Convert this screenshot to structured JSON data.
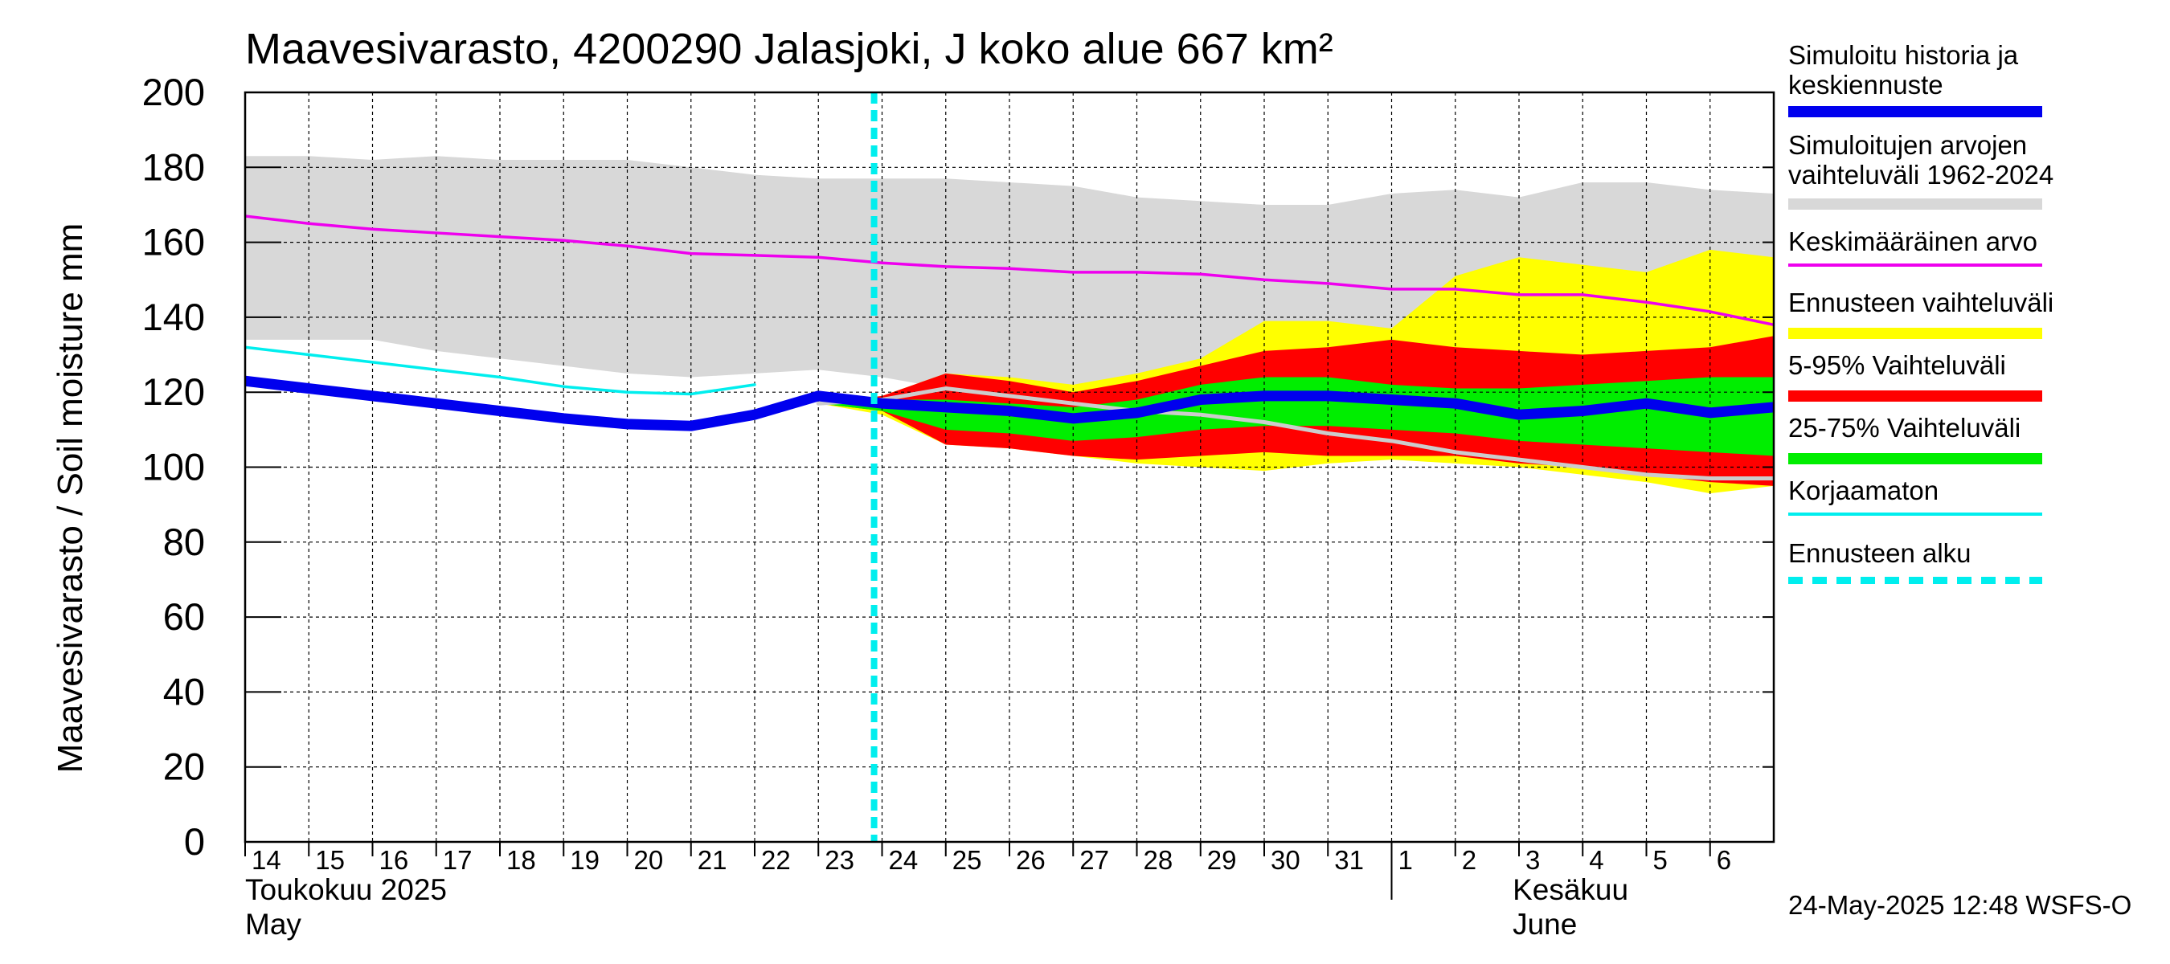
{
  "chart_data": {
    "type": "area",
    "title": "Maavesivarasto, 4200290 Jalasjoki, J koko alue 667 km²",
    "ylabel": "Maavesivarasto / Soil moisture   mm",
    "ylim": [
      0,
      200
    ],
    "yticks": [
      0,
      20,
      40,
      60,
      80,
      100,
      120,
      140,
      160,
      180,
      200
    ],
    "xlim": [
      "2025-05-14",
      "2025-06-07"
    ],
    "xtick_labels": [
      "14",
      "15",
      "16",
      "17",
      "18",
      "19",
      "20",
      "21",
      "22",
      "23",
      "24",
      "25",
      "26",
      "27",
      "28",
      "29",
      "30",
      "31",
      "1",
      "2",
      "3",
      "4",
      "5",
      "6"
    ],
    "month_labels": [
      {
        "fi": "Toukokuu  2025",
        "en": "May"
      },
      {
        "fi": "Kesäkuu",
        "en": "June"
      }
    ],
    "grid": true,
    "legend_position": "right",
    "forecast_start": "2025-05-23T21:00",
    "series": [
      {
        "name": "Simuloitu historia ja keskiennuste",
        "color": "#0000ee",
        "x": [
          "2025-05-14",
          "2025-05-15",
          "2025-05-16",
          "2025-05-17",
          "2025-05-18",
          "2025-05-19",
          "2025-05-20",
          "2025-05-21",
          "2025-05-22",
          "2025-05-23",
          "2025-05-24",
          "2025-05-25",
          "2025-05-26",
          "2025-05-27",
          "2025-05-28",
          "2025-05-29",
          "2025-05-30",
          "2025-05-31",
          "2025-06-01",
          "2025-06-02",
          "2025-06-03",
          "2025-06-04",
          "2025-06-05",
          "2025-06-06",
          "2025-06-07"
        ],
        "y": [
          123,
          121,
          119,
          117,
          115,
          113,
          111.5,
          111,
          114,
          119,
          117,
          116,
          115,
          113,
          114.5,
          118,
          119,
          119,
          118,
          117,
          114,
          115,
          117,
          114.5,
          116
        ]
      },
      {
        "name": "Simuloitujen arvojen vaihteluväli 1962-2024",
        "color": "#d8d8d8",
        "x": [
          "2025-05-14",
          "2025-05-15",
          "2025-05-16",
          "2025-05-17",
          "2025-05-18",
          "2025-05-19",
          "2025-05-20",
          "2025-05-21",
          "2025-05-22",
          "2025-05-23",
          "2025-05-24",
          "2025-05-25",
          "2025-05-26",
          "2025-05-27",
          "2025-05-28",
          "2025-05-29",
          "2025-05-30",
          "2025-05-31",
          "2025-06-01",
          "2025-06-02",
          "2025-06-03",
          "2025-06-04",
          "2025-06-05",
          "2025-06-06",
          "2025-06-07"
        ],
        "upper": [
          183,
          183,
          182,
          183,
          182,
          182,
          182,
          180,
          178,
          177,
          177,
          177,
          176,
          175,
          172,
          171,
          170,
          170,
          173,
          174,
          172,
          176,
          176,
          174,
          173
        ],
        "lower": [
          134,
          134,
          134,
          131,
          129,
          127,
          125,
          124,
          125,
          126,
          124,
          121,
          119,
          118,
          116,
          116,
          117,
          118,
          118,
          117,
          116,
          118,
          117,
          118,
          116
        ]
      },
      {
        "name": "Keskimääräinen arvo",
        "color": "#ee00ee",
        "x": [
          "2025-05-14",
          "2025-05-15",
          "2025-05-16",
          "2025-05-17",
          "2025-05-18",
          "2025-05-19",
          "2025-05-20",
          "2025-05-21",
          "2025-05-22",
          "2025-05-23",
          "2025-05-24",
          "2025-05-25",
          "2025-05-26",
          "2025-05-27",
          "2025-05-28",
          "2025-05-29",
          "2025-05-30",
          "2025-05-31",
          "2025-06-01",
          "2025-06-02",
          "2025-06-03",
          "2025-06-04",
          "2025-06-05",
          "2025-06-06",
          "2025-06-07"
        ],
        "y": [
          167,
          165,
          163.5,
          162.5,
          161.5,
          160.5,
          159,
          157,
          156.5,
          156,
          154.5,
          153.5,
          153,
          152,
          152,
          151.5,
          150,
          149,
          147.5,
          147.5,
          146,
          146,
          144,
          141.5,
          138
        ]
      },
      {
        "name": "Ennusteen vaihteluväli",
        "color": "#ffff00",
        "x": [
          "2025-05-23",
          "2025-05-24",
          "2025-05-25",
          "2025-05-26",
          "2025-05-27",
          "2025-05-28",
          "2025-05-29",
          "2025-05-30",
          "2025-05-31",
          "2025-06-01",
          "2025-06-02",
          "2025-06-03",
          "2025-06-04",
          "2025-06-05",
          "2025-06-06",
          "2025-06-07"
        ],
        "upper": [
          117,
          119,
          125,
          124,
          122,
          125,
          129,
          139,
          139,
          137,
          151,
          156,
          154,
          152,
          158,
          156
        ],
        "lower": [
          117,
          114,
          106,
          105,
          103,
          101,
          100,
          99,
          101,
          102,
          101,
          100,
          98,
          96,
          93,
          95
        ]
      },
      {
        "name": "5-95% Vaihteluväli",
        "color": "#ff0000",
        "x": [
          "2025-05-23",
          "2025-05-24",
          "2025-05-25",
          "2025-05-26",
          "2025-05-27",
          "2025-05-28",
          "2025-05-29",
          "2025-05-30",
          "2025-05-31",
          "2025-06-01",
          "2025-06-02",
          "2025-06-03",
          "2025-06-04",
          "2025-06-05",
          "2025-06-06",
          "2025-06-07"
        ],
        "upper": [
          117,
          119,
          125,
          123,
          120,
          123,
          127,
          131,
          132,
          134,
          132,
          131,
          130,
          131,
          132,
          135
        ],
        "lower": [
          117,
          115,
          106,
          105,
          103,
          102,
          103,
          104,
          103,
          103,
          103,
          101,
          100,
          98,
          96,
          95
        ]
      },
      {
        "name": "25-75% Vaihteluväli",
        "color": "#00ee00",
        "x": [
          "2025-05-23",
          "2025-05-24",
          "2025-05-25",
          "2025-05-26",
          "2025-05-27",
          "2025-05-28",
          "2025-05-29",
          "2025-05-30",
          "2025-05-31",
          "2025-06-01",
          "2025-06-02",
          "2025-06-03",
          "2025-06-04",
          "2025-06-05",
          "2025-06-06",
          "2025-06-07"
        ],
        "upper": [
          117,
          118,
          118,
          117,
          116,
          118,
          122,
          124,
          124,
          122,
          121,
          121,
          122,
          123,
          124,
          124
        ],
        "lower": [
          117,
          115,
          110,
          109,
          107,
          108,
          110,
          111,
          111,
          110,
          109,
          107,
          106,
          105,
          104,
          103
        ]
      },
      {
        "name": "Korjaamaton",
        "color": "#00eeee",
        "x": [
          "2025-05-14",
          "2025-05-15",
          "2025-05-16",
          "2025-05-17",
          "2025-05-18",
          "2025-05-19",
          "2025-05-20",
          "2025-05-21",
          "2025-05-22"
        ],
        "y": [
          132,
          130,
          128,
          126,
          124,
          121.5,
          120,
          119.5,
          122
        ]
      },
      {
        "name": "Grey line",
        "color": "#cccccc",
        "x": [
          "2025-05-23",
          "2025-05-24",
          "2025-05-25",
          "2025-05-26",
          "2025-05-27",
          "2025-05-28",
          "2025-05-29",
          "2025-05-30",
          "2025-05-31",
          "2025-06-01",
          "2025-06-02",
          "2025-06-03",
          "2025-06-04",
          "2025-06-05",
          "2025-06-06",
          "2025-06-07"
        ],
        "y": [
          117,
          118,
          121,
          119,
          117,
          115,
          114,
          112,
          109,
          107,
          104,
          102,
          100,
          98,
          97,
          97
        ]
      }
    ]
  },
  "legend": {
    "items": [
      {
        "label": "Simuloitu historia ja keskiennuste",
        "color": "#0000ee",
        "style": "thick"
      },
      {
        "label": "Simuloitujen arvojen vaihteluväli 1962-2024",
        "color": "#d8d8d8",
        "style": "thick"
      },
      {
        "label": "Keskimääräinen arvo",
        "color": "#ee00ee",
        "style": "thin"
      },
      {
        "label": "Ennusteen vaihteluväli",
        "color": "#ffff00",
        "style": "thick"
      },
      {
        "label": "5-95% Vaihteluväli",
        "color": "#ff0000",
        "style": "thick"
      },
      {
        "label": "25-75% Vaihteluväli",
        "color": "#00ee00",
        "style": "thick"
      },
      {
        "label": "Korjaamaton",
        "color": "#00eeee",
        "style": "thin"
      },
      {
        "label": "Ennusteen alku",
        "color": "#00eeee",
        "style": "dashed"
      }
    ]
  },
  "footer": {
    "timestamp": "24-May-2025 12:48 WSFS-O"
  }
}
